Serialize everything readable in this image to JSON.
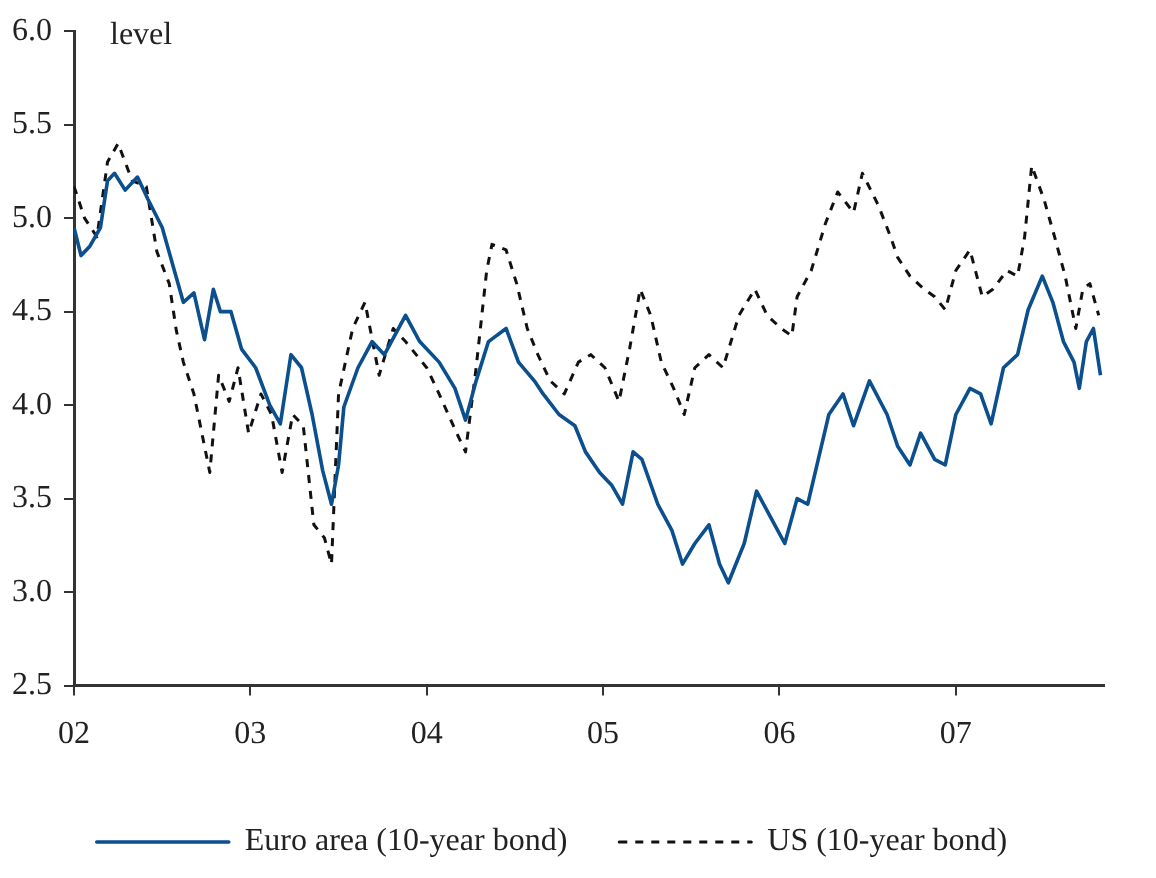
{
  "chart_data": {
    "type": "line",
    "ylabel": "level",
    "xlim": [
      2002,
      2007.84
    ],
    "xticks": [
      {
        "value": 2002,
        "label": "02"
      },
      {
        "value": 2003,
        "label": "03"
      },
      {
        "value": 2004,
        "label": "04"
      },
      {
        "value": 2005,
        "label": "05"
      },
      {
        "value": 2006,
        "label": "06"
      },
      {
        "value": 2007,
        "label": "07"
      }
    ],
    "ylim": [
      2.5,
      6.0
    ],
    "yticks": [
      {
        "value": 2.5,
        "label": "2.5"
      },
      {
        "value": 3,
        "label": "3.0"
      },
      {
        "value": 3.5,
        "label": "3.5"
      },
      {
        "value": 4,
        "label": "4.0"
      },
      {
        "value": 4.5,
        "label": "4.5"
      },
      {
        "value": 5,
        "label": "5.0"
      },
      {
        "value": 5.5,
        "label": "5.5"
      },
      {
        "value": 6,
        "label": "6.0"
      }
    ],
    "grid": false,
    "legend": "bottom",
    "marker": "none",
    "series": [
      {
        "name": "Euro area (10-year bond)",
        "color": "#0b4f8e",
        "line_style": "solid",
        "x": [
          2002.0,
          2002.04,
          2002.09,
          2002.15,
          2002.19,
          2002.23,
          2002.29,
          2002.36,
          2002.42,
          2002.5,
          2002.56,
          2002.62,
          2002.68,
          2002.74,
          2002.79,
          2002.83,
          2002.89,
          2002.95,
          2003.03,
          2003.11,
          2003.17,
          2003.23,
          2003.29,
          2003.35,
          2003.41,
          2003.46,
          2003.5,
          2003.53,
          2003.61,
          2003.69,
          2003.76,
          2003.88,
          2003.96,
          2004.07,
          2004.16,
          2004.22,
          2004.28,
          2004.35,
          2004.45,
          2004.52,
          2004.61,
          2004.66,
          2004.75,
          2004.84,
          2004.9,
          2004.98,
          2005.05,
          2005.11,
          2005.17,
          2005.22,
          2005.31,
          2005.39,
          2005.45,
          2005.52,
          2005.6,
          2005.66,
          2005.71,
          2005.8,
          2005.87,
          2005.95,
          2006.03,
          2006.1,
          2006.16,
          2006.22,
          2006.28,
          2006.36,
          2006.42,
          2006.51,
          2006.61,
          2006.67,
          2006.74,
          2006.8,
          2006.88,
          2006.94,
          2007.0,
          2007.08,
          2007.14,
          2007.2,
          2007.27,
          2007.35,
          2007.41,
          2007.49,
          2007.55,
          2007.61,
          2007.67,
          2007.7,
          2007.74,
          2007.78,
          2007.82
        ],
        "values": [
          4.95,
          4.8,
          4.85,
          4.95,
          5.2,
          5.24,
          5.15,
          5.22,
          5.1,
          4.95,
          4.75,
          4.55,
          4.6,
          4.35,
          4.62,
          4.5,
          4.5,
          4.3,
          4.2,
          4.0,
          3.9,
          4.27,
          4.2,
          3.95,
          3.65,
          3.47,
          3.68,
          3.99,
          4.2,
          4.34,
          4.27,
          4.48,
          4.34,
          4.23,
          4.09,
          3.92,
          4.13,
          4.34,
          4.41,
          4.23,
          4.13,
          4.06,
          3.95,
          3.89,
          3.75,
          3.64,
          3.57,
          3.47,
          3.75,
          3.71,
          3.47,
          3.33,
          3.15,
          3.26,
          3.36,
          3.15,
          3.05,
          3.26,
          3.54,
          3.4,
          3.26,
          3.5,
          3.47,
          3.71,
          3.95,
          4.06,
          3.89,
          4.13,
          3.95,
          3.78,
          3.68,
          3.85,
          3.71,
          3.68,
          3.95,
          4.09,
          4.06,
          3.9,
          4.2,
          4.27,
          4.51,
          4.69,
          4.55,
          4.34,
          4.23,
          4.09,
          4.34,
          4.41,
          4.16
        ]
      },
      {
        "name": "US (10-year bond)",
        "color": "#111111",
        "line_style": "dashed",
        "x": [
          2002.0,
          2002.06,
          2002.13,
          2002.19,
          2002.25,
          2002.33,
          2002.41,
          2002.47,
          2002.54,
          2002.58,
          2002.62,
          2002.68,
          2002.74,
          2002.77,
          2002.82,
          2002.88,
          2002.93,
          2002.99,
          2003.06,
          2003.12,
          2003.18,
          2003.24,
          2003.3,
          2003.36,
          2003.42,
          2003.46,
          2003.5,
          2003.58,
          2003.65,
          2003.73,
          2003.81,
          2003.88,
          2004.0,
          2004.07,
          2004.17,
          2004.22,
          2004.28,
          2004.34,
          2004.37,
          2004.45,
          2004.51,
          2004.57,
          2004.63,
          2004.7,
          2004.78,
          2004.86,
          2004.93,
          2005.01,
          2005.09,
          2005.15,
          2005.21,
          2005.27,
          2005.33,
          2005.4,
          2005.46,
          2005.52,
          2005.6,
          2005.68,
          2005.77,
          2005.86,
          2005.93,
          2006.01,
          2006.07,
          2006.1,
          2006.18,
          2006.26,
          2006.33,
          2006.42,
          2006.47,
          2006.56,
          2006.63,
          2006.67,
          2006.74,
          2006.82,
          2006.88,
          2006.94,
          2007.0,
          2007.08,
          2007.15,
          2007.21,
          2007.29,
          2007.35,
          2007.39,
          2007.43,
          2007.5,
          2007.56,
          2007.62,
          2007.68,
          2007.72,
          2007.76,
          2007.81
        ],
        "values": [
          5.17,
          5.0,
          4.9,
          5.3,
          5.4,
          5.2,
          5.17,
          4.82,
          4.65,
          4.4,
          4.23,
          4.06,
          3.78,
          3.64,
          4.16,
          4.02,
          4.2,
          3.85,
          4.06,
          3.95,
          3.64,
          3.95,
          3.89,
          3.36,
          3.29,
          3.15,
          4.06,
          4.41,
          4.55,
          4.16,
          4.41,
          4.34,
          4.2,
          4.06,
          3.85,
          3.75,
          4.2,
          4.72,
          4.86,
          4.83,
          4.65,
          4.41,
          4.27,
          4.13,
          4.06,
          4.23,
          4.27,
          4.2,
          4.02,
          4.3,
          4.62,
          4.48,
          4.23,
          4.09,
          3.95,
          4.2,
          4.27,
          4.2,
          4.48,
          4.62,
          4.48,
          4.41,
          4.37,
          4.58,
          4.72,
          4.97,
          5.14,
          5.03,
          5.24,
          5.07,
          4.9,
          4.79,
          4.69,
          4.62,
          4.58,
          4.51,
          4.72,
          4.83,
          4.58,
          4.62,
          4.72,
          4.69,
          4.9,
          5.28,
          5.1,
          4.9,
          4.69,
          4.41,
          4.62,
          4.65,
          4.48
        ]
      }
    ]
  }
}
